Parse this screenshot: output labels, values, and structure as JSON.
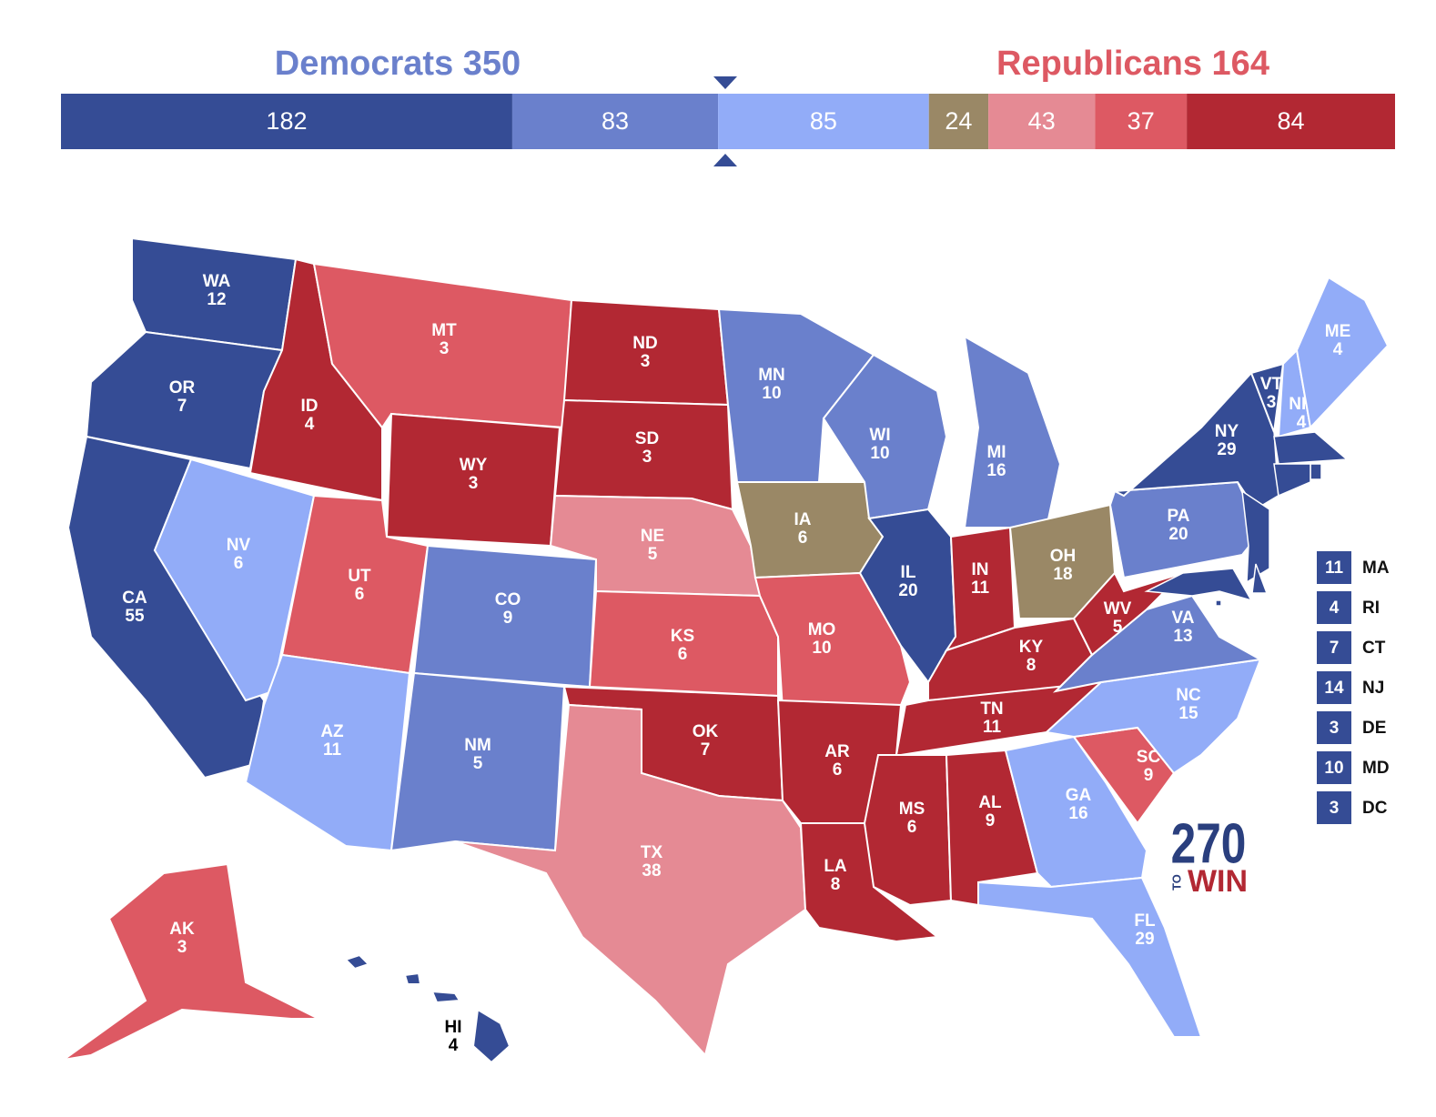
{
  "header": {
    "dem_label": "Democrats 350",
    "rep_label": "Republicans 164"
  },
  "bar": {
    "segments": [
      {
        "value": 182,
        "color": "#354c95"
      },
      {
        "value": 83,
        "color": "#6a80cc"
      },
      {
        "value": 85,
        "color": "#92acf8"
      },
      {
        "value": 24,
        "color": "#9a8866"
      },
      {
        "value": 43,
        "color": "#e58a94"
      },
      {
        "value": 37,
        "color": "#dd5963"
      },
      {
        "value": 84,
        "color": "#b22833"
      }
    ]
  },
  "states": [
    {
      "abbr": "WA",
      "ev": 12,
      "color": "#354c95"
    },
    {
      "abbr": "OR",
      "ev": 7,
      "color": "#354c95"
    },
    {
      "abbr": "CA",
      "ev": 55,
      "color": "#354c95"
    },
    {
      "abbr": "NV",
      "ev": 6,
      "color": "#92acf8"
    },
    {
      "abbr": "ID",
      "ev": 4,
      "color": "#b22833"
    },
    {
      "abbr": "MT",
      "ev": 3,
      "color": "#dd5963"
    },
    {
      "abbr": "WY",
      "ev": 3,
      "color": "#b22833"
    },
    {
      "abbr": "UT",
      "ev": 6,
      "color": "#dd5963"
    },
    {
      "abbr": "AZ",
      "ev": 11,
      "color": "#92acf8"
    },
    {
      "abbr": "CO",
      "ev": 9,
      "color": "#6a80cc"
    },
    {
      "abbr": "NM",
      "ev": 5,
      "color": "#6a80cc"
    },
    {
      "abbr": "ND",
      "ev": 3,
      "color": "#b22833"
    },
    {
      "abbr": "SD",
      "ev": 3,
      "color": "#b22833"
    },
    {
      "abbr": "NE",
      "ev": 5,
      "color": "#e58a94"
    },
    {
      "abbr": "KS",
      "ev": 6,
      "color": "#dd5963"
    },
    {
      "abbr": "OK",
      "ev": 7,
      "color": "#b22833"
    },
    {
      "abbr": "TX",
      "ev": 38,
      "color": "#e58a94"
    },
    {
      "abbr": "MN",
      "ev": 10,
      "color": "#6a80cc"
    },
    {
      "abbr": "IA",
      "ev": 6,
      "color": "#9a8866"
    },
    {
      "abbr": "MO",
      "ev": 10,
      "color": "#dd5963"
    },
    {
      "abbr": "AR",
      "ev": 6,
      "color": "#b22833"
    },
    {
      "abbr": "LA",
      "ev": 8,
      "color": "#b22833"
    },
    {
      "abbr": "WI",
      "ev": 10,
      "color": "#6a80cc"
    },
    {
      "abbr": "IL",
      "ev": 20,
      "color": "#354c95"
    },
    {
      "abbr": "MI",
      "ev": 16,
      "color": "#6a80cc"
    },
    {
      "abbr": "IN",
      "ev": 11,
      "color": "#b22833"
    },
    {
      "abbr": "OH",
      "ev": 18,
      "color": "#9a8866"
    },
    {
      "abbr": "KY",
      "ev": 8,
      "color": "#b22833"
    },
    {
      "abbr": "TN",
      "ev": 11,
      "color": "#b22833"
    },
    {
      "abbr": "MS",
      "ev": 6,
      "color": "#b22833"
    },
    {
      "abbr": "AL",
      "ev": 9,
      "color": "#b22833"
    },
    {
      "abbr": "GA",
      "ev": 16,
      "color": "#92acf8"
    },
    {
      "abbr": "FL",
      "ev": 29,
      "color": "#92acf8"
    },
    {
      "abbr": "SC",
      "ev": 9,
      "color": "#dd5963"
    },
    {
      "abbr": "NC",
      "ev": 15,
      "color": "#92acf8"
    },
    {
      "abbr": "VA",
      "ev": 13,
      "color": "#6a80cc"
    },
    {
      "abbr": "WV",
      "ev": 5,
      "color": "#b22833"
    },
    {
      "abbr": "PA",
      "ev": 20,
      "color": "#6a80cc"
    },
    {
      "abbr": "NY",
      "ev": 29,
      "color": "#354c95"
    },
    {
      "abbr": "VT",
      "ev": 3,
      "color": "#354c95"
    },
    {
      "abbr": "NH",
      "ev": 4,
      "color": "#92acf8"
    },
    {
      "abbr": "ME",
      "ev": 4,
      "color": "#92acf8"
    },
    {
      "abbr": "AK",
      "ev": 3,
      "color": "#dd5963"
    },
    {
      "abbr": "HI",
      "ev": 4,
      "color": "#354c95"
    }
  ],
  "small_states": [
    {
      "ev": 11,
      "abbr": "MA",
      "color": "#354c95"
    },
    {
      "ev": 4,
      "abbr": "RI",
      "color": "#354c95"
    },
    {
      "ev": 7,
      "abbr": "CT",
      "color": "#354c95"
    },
    {
      "ev": 14,
      "abbr": "NJ",
      "color": "#354c95"
    },
    {
      "ev": 3,
      "abbr": "DE",
      "color": "#354c95"
    },
    {
      "ev": 10,
      "abbr": "MD",
      "color": "#354c95"
    },
    {
      "ev": 3,
      "abbr": "DC",
      "color": "#354c95"
    }
  ],
  "logo": {
    "number": "270",
    "to": "TO",
    "win": "WIN"
  }
}
